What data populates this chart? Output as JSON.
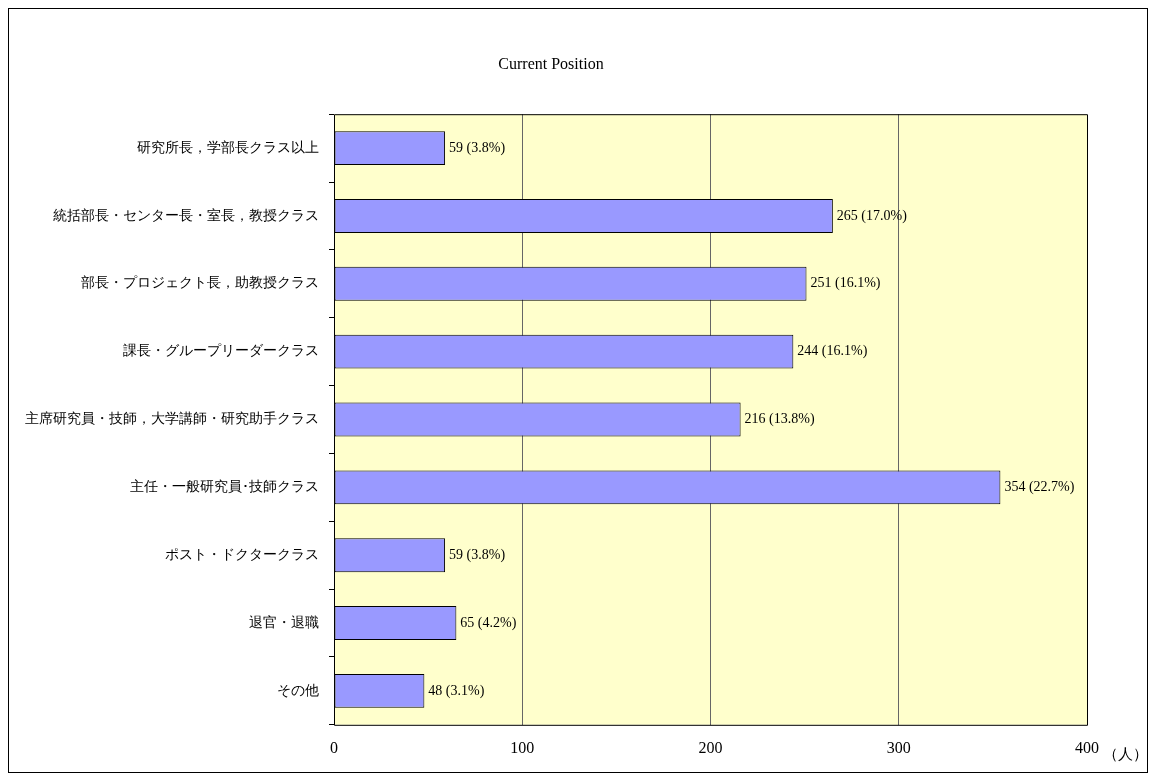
{
  "chart_data": {
    "type": "bar",
    "orientation": "horizontal",
    "title": "Current Position",
    "xlabel": "（人）",
    "categories": [
      "研究所長，学部長クラス以上",
      "統括部長・センター長・室長，教授クラス",
      "部長・プロジェクト長，助教授クラス",
      "課長・グループリーダークラス",
      "主席研究員・技師，大学講師・研究助手クラス",
      "主任・一般研究員･技師クラス",
      "ポスト・ドクタークラス",
      "退官・退職",
      "その他"
    ],
    "values": [
      59,
      265,
      251,
      244,
      216,
      354,
      59,
      65,
      48
    ],
    "value_labels": [
      "59 (3.8%)",
      "265 (17.0%)",
      "251 (16.1%)",
      "244 (16.1%)",
      "216 (13.8%)",
      "354 (22.7%)",
      "59 (3.8%)",
      "65 (4.2%)",
      "48 (3.1%)"
    ],
    "color": "#9999ff",
    "xlim": [
      0,
      400
    ],
    "xticks": [
      0,
      100,
      200,
      300,
      400
    ],
    "grid": "x",
    "legend": false
  }
}
